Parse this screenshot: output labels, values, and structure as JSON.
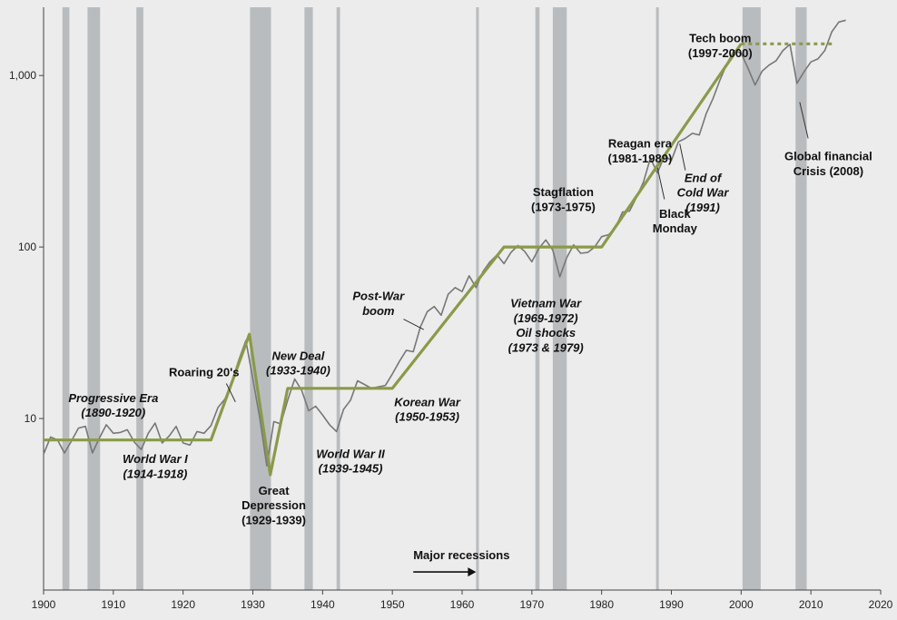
{
  "chart_data": {
    "type": "line",
    "title": "",
    "xlabel": "",
    "ylabel": "",
    "y_scale": "log",
    "xlim": [
      1900,
      2020
    ],
    "ylim": [
      1,
      2500
    ],
    "grid": false,
    "x_ticks": [
      1900,
      1910,
      1920,
      1930,
      1940,
      1950,
      1960,
      1970,
      1980,
      1990,
      2000,
      2010,
      2020
    ],
    "y_ticks": [
      {
        "value": 10,
        "label": "10"
      },
      {
        "value": 100,
        "label": "100"
      },
      {
        "value": 1000,
        "label": "1,000"
      }
    ],
    "colors": {
      "background": "#ececec",
      "recession": "#b9bcbf",
      "index_line": "#777777",
      "trend_line": "#8a9a4a",
      "annotation": "#111111"
    },
    "recessions": [
      [
        1902.7,
        1903.7
      ],
      [
        1906.3,
        1908.1
      ],
      [
        1913.3,
        1914.3
      ],
      [
        1929.6,
        1932.6
      ],
      [
        1937.4,
        1938.6
      ],
      [
        1942.0,
        1942.5
      ],
      [
        1962.0,
        1962.4
      ],
      [
        1970.5,
        1971.1
      ],
      [
        1973.0,
        1975.0
      ],
      [
        1987.8,
        1988.2
      ],
      [
        2000.2,
        2002.8
      ],
      [
        2007.8,
        2009.4
      ]
    ],
    "series": [
      {
        "values": [
          [
            1900,
            6.2
          ],
          [
            1901,
            7.8
          ],
          [
            1902,
            7.5
          ],
          [
            1903,
            6.3
          ],
          [
            1904,
            7.4
          ],
          [
            1905,
            8.8
          ],
          [
            1906,
            9.0
          ],
          [
            1907,
            6.3
          ],
          [
            1908,
            7.7
          ],
          [
            1909,
            9.2
          ],
          [
            1910,
            8.2
          ],
          [
            1911,
            8.3
          ],
          [
            1912,
            8.6
          ],
          [
            1913,
            7.3
          ],
          [
            1914,
            6.6
          ],
          [
            1915,
            8.2
          ],
          [
            1916,
            9.4
          ],
          [
            1917,
            7.2
          ],
          [
            1918,
            7.9
          ],
          [
            1919,
            9.0
          ],
          [
            1920,
            7.2
          ],
          [
            1921,
            7.0
          ],
          [
            1922,
            8.4
          ],
          [
            1923,
            8.2
          ],
          [
            1924,
            9.1
          ],
          [
            1925,
            11.6
          ],
          [
            1926,
            13.0
          ],
          [
            1927,
            16.5
          ],
          [
            1928,
            22.0
          ],
          [
            1929,
            28.5
          ],
          [
            1930,
            17.0
          ],
          [
            1931,
            10.0
          ],
          [
            1932,
            5.3
          ],
          [
            1933,
            9.6
          ],
          [
            1934,
            9.3
          ],
          [
            1935,
            12.8
          ],
          [
            1936,
            17.0
          ],
          [
            1937,
            14.6
          ],
          [
            1938,
            11.1
          ],
          [
            1939,
            11.8
          ],
          [
            1940,
            10.5
          ],
          [
            1941,
            9.2
          ],
          [
            1942,
            8.4
          ],
          [
            1943,
            11.3
          ],
          [
            1944,
            12.8
          ],
          [
            1945,
            16.6
          ],
          [
            1946,
            15.8
          ],
          [
            1947,
            15.0
          ],
          [
            1948,
            15.3
          ],
          [
            1949,
            15.6
          ],
          [
            1950,
            18.2
          ],
          [
            1951,
            21.5
          ],
          [
            1952,
            25.0
          ],
          [
            1953,
            24.5
          ],
          [
            1954,
            34.0
          ],
          [
            1955,
            42.0
          ],
          [
            1956,
            45.0
          ],
          [
            1957,
            40.0
          ],
          [
            1958,
            53.0
          ],
          [
            1959,
            58.0
          ],
          [
            1960,
            55.0
          ],
          [
            1961,
            68.0
          ],
          [
            1962,
            58.0
          ],
          [
            1963,
            72.0
          ],
          [
            1964,
            82.0
          ],
          [
            1965,
            90.0
          ],
          [
            1966,
            80.0
          ],
          [
            1967,
            93.0
          ],
          [
            1968,
            102.0
          ],
          [
            1969,
            94.0
          ],
          [
            1970,
            82.0
          ],
          [
            1971,
            98.0
          ],
          [
            1972,
            110.0
          ],
          [
            1973,
            96.0
          ],
          [
            1974,
            67.0
          ],
          [
            1975,
            87.0
          ],
          [
            1976,
            103.0
          ],
          [
            1977,
            92.0
          ],
          [
            1978,
            93.0
          ],
          [
            1979,
            100.0
          ],
          [
            1980,
            115.0
          ],
          [
            1981,
            118.0
          ],
          [
            1982,
            130.0
          ],
          [
            1983,
            160.0
          ],
          [
            1984,
            162.0
          ],
          [
            1985,
            195.0
          ],
          [
            1986,
            240.0
          ],
          [
            1987,
            330.0
          ],
          [
            1988,
            270.0
          ],
          [
            1989,
            340.0
          ],
          [
            1990,
            320.0
          ],
          [
            1991,
            410.0
          ],
          [
            1992,
            430.0
          ],
          [
            1993,
            460.0
          ],
          [
            1994,
            450.0
          ],
          [
            1995,
            600.0
          ],
          [
            1996,
            740.0
          ],
          [
            1997,
            950.0
          ],
          [
            1998,
            1180.0
          ],
          [
            1999,
            1400.0
          ],
          [
            2000,
            1350.0
          ],
          [
            2001,
            1100.0
          ],
          [
            2002,
            880.0
          ],
          [
            2003,
            1060.0
          ],
          [
            2004,
            1150.0
          ],
          [
            2005,
            1220.0
          ],
          [
            2006,
            1400.0
          ],
          [
            2007,
            1520.0
          ],
          [
            2008,
            900.0
          ],
          [
            2009,
            1050.0
          ],
          [
            2010,
            1200.0
          ],
          [
            2011,
            1250.0
          ],
          [
            2012,
            1400.0
          ],
          [
            2013,
            1800.0
          ],
          [
            2014,
            2050.0
          ],
          [
            2015,
            2100.0
          ]
        ]
      },
      {
        "values": [
          [
            1900,
            7.5
          ],
          [
            1924,
            7.5
          ],
          [
            1929.5,
            31.0
          ],
          [
            1932.5,
            4.7
          ],
          [
            1935,
            15.0
          ],
          [
            1950,
            15.0
          ],
          [
            1966,
            100.0
          ],
          [
            1980,
            100.0
          ],
          [
            2000,
            1530.0
          ]
        ]
      },
      {
        "dashed": true,
        "values": [
          [
            2000,
            1530.0
          ],
          [
            2013,
            1530.0
          ]
        ]
      }
    ],
    "annotations": [
      {
        "lines": [
          "Progressive Era",
          "(1890-1920)"
        ],
        "italic": true,
        "x": 1910,
        "y": 12.5,
        "anchor": "middle"
      },
      {
        "lines": [
          "World War I",
          "(1914-1918)"
        ],
        "italic": true,
        "x": 1916,
        "y": 5.5,
        "anchor": "middle"
      },
      {
        "lines": [
          "Roaring 20's"
        ],
        "italic": false,
        "x": 1923,
        "y": 17.6,
        "anchor": "middle"
      },
      {
        "lines": [
          "New Deal",
          "(1933-1940)"
        ],
        "italic": true,
        "x": 1936.5,
        "y": 22.0,
        "anchor": "middle"
      },
      {
        "lines": [
          "Great",
          "Depression",
          "(1929-1939)"
        ],
        "italic": false,
        "x": 1933,
        "y": 3.6,
        "anchor": "middle"
      },
      {
        "lines": [
          "World War II",
          "(1939-1945)"
        ],
        "italic": true,
        "x": 1944,
        "y": 5.9,
        "anchor": "middle"
      },
      {
        "lines": [
          "Post-War",
          "boom"
        ],
        "italic": true,
        "x": 1948,
        "y": 49.0,
        "anchor": "middle"
      },
      {
        "lines": [
          "Korean War",
          "(1950-1953)"
        ],
        "italic": true,
        "x": 1955,
        "y": 11.8,
        "anchor": "middle"
      },
      {
        "lines": [
          "Stagflation",
          "(1973-1975)"
        ],
        "italic": false,
        "x": 1974.5,
        "y": 198.0,
        "anchor": "middle"
      },
      {
        "lines": [
          "Vietnam War",
          "(1969-1972)",
          "Oil shocks",
          "(1973 & 1979)"
        ],
        "italic": true,
        "x": 1972,
        "y": 44.5,
        "anchor": "middle"
      },
      {
        "lines": [
          "Reagan era",
          "(1981-1989)"
        ],
        "italic": false,
        "x": 1985.5,
        "y": 380.0,
        "anchor": "middle"
      },
      {
        "lines": [
          "Black",
          "Monday"
        ],
        "italic": false,
        "x": 1990.5,
        "y": 148.0,
        "anchor": "middle"
      },
      {
        "lines": [
          "End of",
          "Cold War",
          "(1991)"
        ],
        "italic": true,
        "x": 1994.5,
        "y": 240.0,
        "anchor": "middle"
      },
      {
        "lines": [
          "Tech boom",
          "(1997-2000)"
        ],
        "italic": false,
        "x": 1997,
        "y": 1560.0,
        "anchor": "middle"
      },
      {
        "lines": [
          "Global financial",
          "Crisis (2008)"
        ],
        "italic": false,
        "x": 2012.5,
        "y": 320.0,
        "anchor": "middle"
      },
      {
        "lines": [
          "Major recessions"
        ],
        "italic": false,
        "x": 1953,
        "y": 1.51,
        "anchor": "start"
      }
    ],
    "leaders": [
      {
        "x1": 1926.2,
        "y1": 16.0,
        "x2": 1927.5,
        "y2": 12.5
      },
      {
        "x1": 1951.6,
        "y1": 38.0,
        "x2": 1954.5,
        "y2": 33.0
      },
      {
        "x1": 1989.0,
        "y1": 190.0,
        "x2": 1988.0,
        "y2": 290.0
      },
      {
        "x1": 1992.0,
        "y1": 280.0,
        "x2": 1991.2,
        "y2": 400.0
      },
      {
        "x1": 2009.6,
        "y1": 430.0,
        "x2": 2008.4,
        "y2": 700.0
      }
    ],
    "arrow": {
      "x1": 1953,
      "y1": 1.275,
      "x2": 1962,
      "y2": 1.275
    }
  }
}
